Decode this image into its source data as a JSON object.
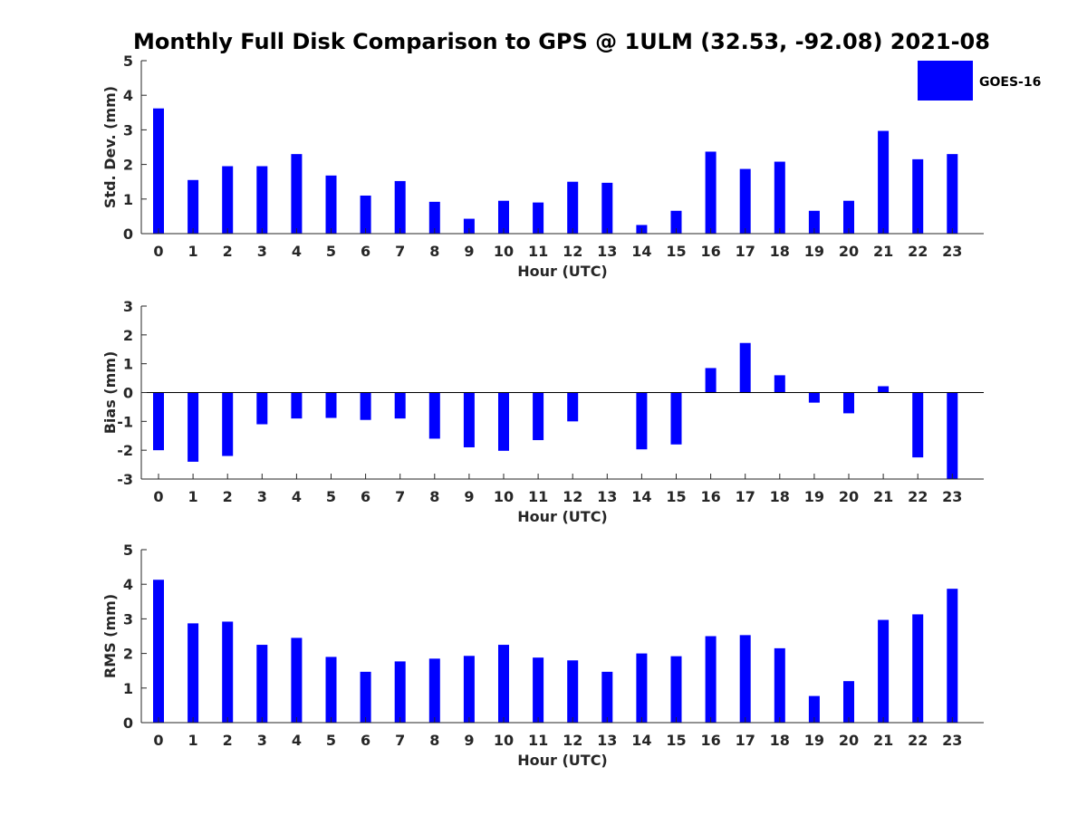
{
  "title": "Monthly Full Disk Comparison to GPS @ 1ULM (32.53, -92.08) 2021-08",
  "legend": {
    "label": "GOES-16",
    "color": "#0000ff"
  },
  "chart_data": [
    {
      "type": "bar",
      "xlabel": "Hour (UTC)",
      "ylabel": "Std. Dev. (mm)",
      "ylim": [
        0,
        5
      ],
      "yticks": [
        "0",
        "1",
        "2",
        "3",
        "4",
        "5"
      ],
      "categories": [
        "0",
        "1",
        "2",
        "3",
        "4",
        "5",
        "6",
        "7",
        "8",
        "9",
        "10",
        "11",
        "12",
        "13",
        "14",
        "15",
        "16",
        "17",
        "18",
        "19",
        "20",
        "21",
        "22",
        "23"
      ],
      "series": [
        {
          "name": "GOES-16",
          "color": "#0000ff",
          "values": [
            3.62,
            1.55,
            1.95,
            1.95,
            2.3,
            1.68,
            1.1,
            1.52,
            0.92,
            0.43,
            0.95,
            0.9,
            1.5,
            1.47,
            0.25,
            0.66,
            2.37,
            1.87,
            2.08,
            0.66,
            0.95,
            2.97,
            2.15,
            2.3
          ]
        }
      ]
    },
    {
      "type": "bar",
      "xlabel": "Hour (UTC)",
      "ylabel": "Bias (mm)",
      "ylim": [
        -3,
        3
      ],
      "yticks": [
        "-3",
        "-2",
        "-1",
        "0",
        "1",
        "2",
        "3"
      ],
      "categories": [
        "0",
        "1",
        "2",
        "3",
        "4",
        "5",
        "6",
        "7",
        "8",
        "9",
        "10",
        "11",
        "12",
        "13",
        "14",
        "15",
        "16",
        "17",
        "18",
        "19",
        "20",
        "21",
        "22",
        "23"
      ],
      "series": [
        {
          "name": "GOES-16",
          "color": "#0000ff",
          "values": [
            -2.0,
            -2.4,
            -2.2,
            -1.1,
            -0.9,
            -0.88,
            -0.95,
            -0.9,
            -1.6,
            -1.9,
            -2.02,
            -1.65,
            -1.0,
            0.0,
            -1.97,
            -1.8,
            0.85,
            1.72,
            0.6,
            -0.35,
            -0.72,
            0.22,
            -2.25,
            -3.0
          ]
        }
      ]
    },
    {
      "type": "bar",
      "xlabel": "Hour (UTC)",
      "ylabel": "RMS (mm)",
      "ylim": [
        0,
        5
      ],
      "yticks": [
        "0",
        "1",
        "2",
        "3",
        "4",
        "5"
      ],
      "categories": [
        "0",
        "1",
        "2",
        "3",
        "4",
        "5",
        "6",
        "7",
        "8",
        "9",
        "10",
        "11",
        "12",
        "13",
        "14",
        "15",
        "16",
        "17",
        "18",
        "19",
        "20",
        "21",
        "22",
        "23"
      ],
      "series": [
        {
          "name": "GOES-16",
          "color": "#0000ff",
          "values": [
            4.13,
            2.87,
            2.92,
            2.25,
            2.45,
            1.9,
            1.47,
            1.77,
            1.85,
            1.93,
            2.25,
            1.88,
            1.8,
            1.47,
            2.0,
            1.92,
            2.5,
            2.53,
            2.15,
            0.77,
            1.2,
            2.97,
            3.13,
            3.87
          ]
        }
      ]
    }
  ]
}
